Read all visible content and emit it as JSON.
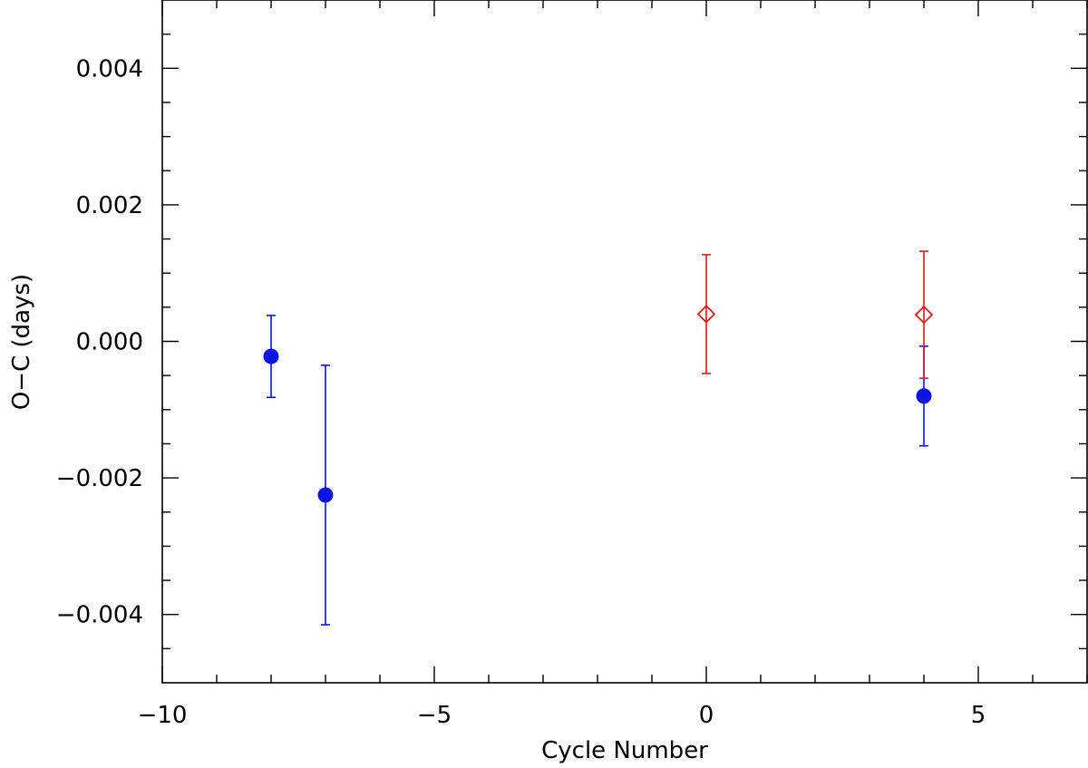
{
  "chart_data": {
    "type": "scatter",
    "title": "",
    "xlabel": "Cycle Number",
    "ylabel": "O−C (days)",
    "xlim": [
      -10,
      7
    ],
    "ylim": [
      -0.005,
      0.005
    ],
    "x_major_ticks": [
      -10,
      -5,
      0,
      5
    ],
    "x_major_labels": [
      "−10",
      "−5",
      "0",
      "5"
    ],
    "x_minor_step": 1,
    "y_major_ticks": [
      -0.004,
      -0.002,
      0.0,
      0.002,
      0.004
    ],
    "y_major_labels": [
      "−0.004",
      "−0.002",
      "0.000",
      "0.002",
      "0.004"
    ],
    "y_minor_step": 0.0005,
    "grid": false,
    "series": [
      {
        "marker": "filled-circle",
        "color": "#0a14e6",
        "points": [
          {
            "x": -8,
            "y": -0.00022,
            "err": 0.0006
          },
          {
            "x": -7,
            "y": -0.00225,
            "err": 0.0019
          },
          {
            "x": 4,
            "y": -0.0008,
            "err": 0.00073
          }
        ]
      },
      {
        "marker": "open-diamond",
        "color": "#e01b1b",
        "points": [
          {
            "x": 0,
            "y": 0.0004,
            "err": 0.00087
          },
          {
            "x": 4,
            "y": 0.00039,
            "err": 0.00093
          }
        ]
      }
    ]
  }
}
